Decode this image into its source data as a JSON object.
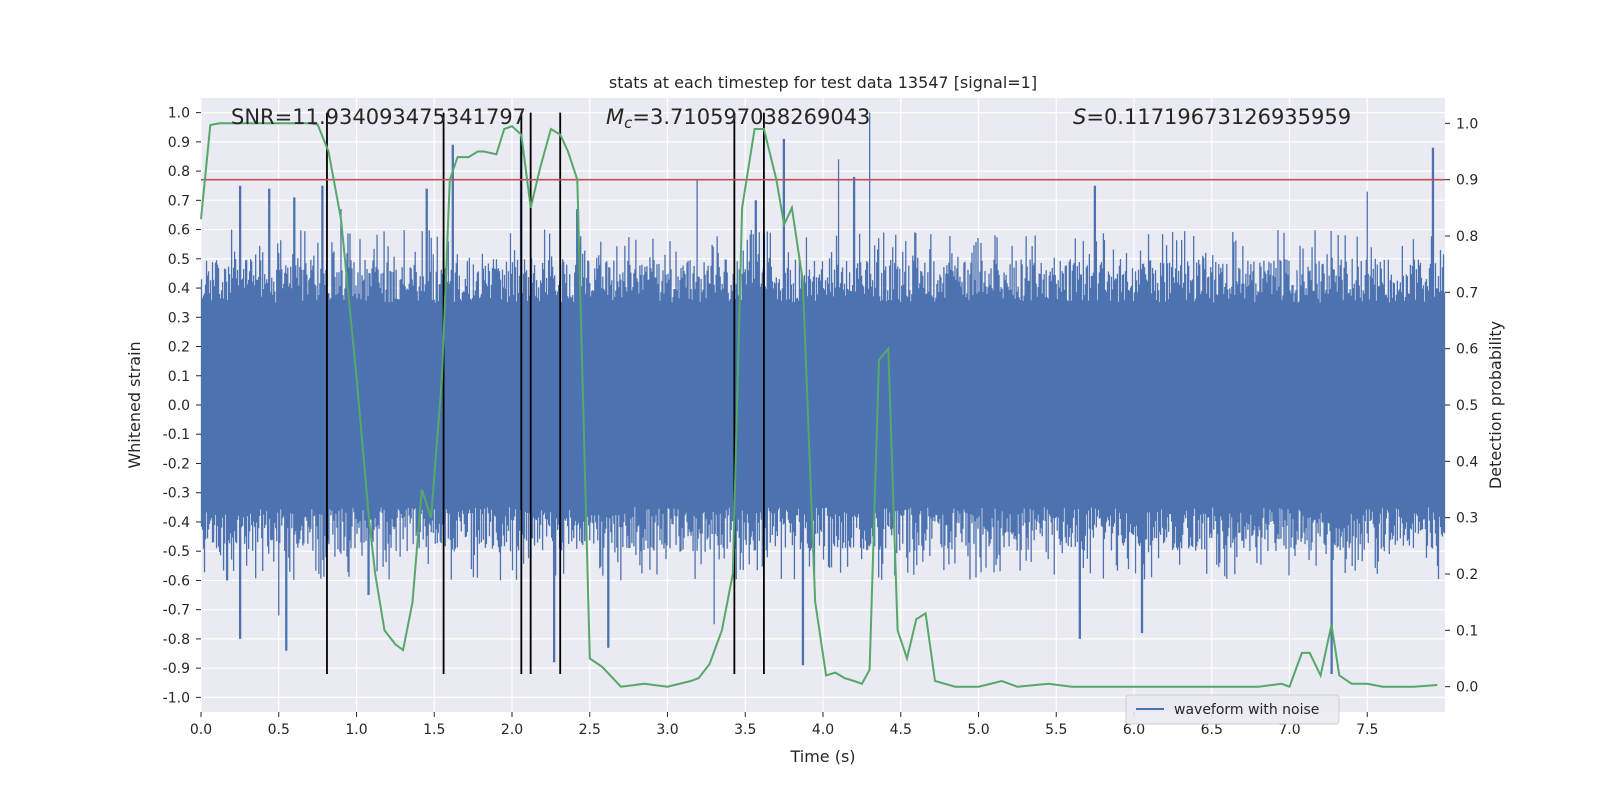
{
  "chart_data": {
    "type": "line",
    "title": "stats at each timestep for test data 13547 [signal=1]",
    "xlabel": "Time (s)",
    "ylabel": "Whitened strain",
    "y2label": "Detection probability",
    "xlim": [
      0,
      8.0
    ],
    "ylim": [
      -1.05,
      1.05
    ],
    "y2lim": [
      -0.045,
      1.045
    ],
    "x_ticks": [
      "0.0",
      "0.5",
      "1.0",
      "1.5",
      "2.0",
      "2.5",
      "3.0",
      "3.5",
      "4.0",
      "4.5",
      "5.0",
      "5.5",
      "6.0",
      "6.5",
      "7.0",
      "7.5"
    ],
    "y_ticks": [
      "-1.0",
      "-0.9",
      "-0.8",
      "-0.7",
      "-0.6",
      "-0.5",
      "-0.4",
      "-0.3",
      "-0.2",
      "-0.1",
      "0.0",
      "0.1",
      "0.2",
      "0.3",
      "0.4",
      "0.5",
      "0.6",
      "0.7",
      "0.8",
      "0.9",
      "1.0"
    ],
    "y2_ticks": [
      "0.0",
      "0.1",
      "0.2",
      "0.3",
      "0.4",
      "0.5",
      "0.6",
      "0.7",
      "0.8",
      "0.9",
      "1.0"
    ],
    "grid": true,
    "legend": {
      "placement": "lower-right",
      "entries": [
        "waveform with noise"
      ]
    },
    "annotations": {
      "snr": "SNR=11.934093475341797",
      "mc_symbol": "M",
      "mc_sub": "c",
      "mc_value": "=3.710597038269043",
      "s_symbol": "S",
      "s_value": "=0.11719673126935959"
    },
    "threshold": 0.9,
    "vertical_lines_x": [
      0.81,
      1.56,
      2.06,
      2.12,
      2.31,
      3.43,
      3.62
    ],
    "vertical_lines_y": [
      -0.92,
      1.0
    ],
    "series": [
      {
        "name": "waveform with noise",
        "axis": "left",
        "kind": "noise-waveform",
        "envelope": {
          "core": 0.35,
          "typical_peak": 0.6,
          "max_peak": 1.0,
          "min_trough": -0.92
        },
        "spikes": [
          {
            "x": 0.25,
            "y": 0.75
          },
          {
            "x": 0.44,
            "y": 0.74
          },
          {
            "x": 0.6,
            "y": 0.71
          },
          {
            "x": 0.78,
            "y": 0.75
          },
          {
            "x": 0.9,
            "y": 0.67
          },
          {
            "x": 1.45,
            "y": 0.74
          },
          {
            "x": 1.62,
            "y": 0.89
          },
          {
            "x": 2.06,
            "y": 0.92
          },
          {
            "x": 2.42,
            "y": 0.67
          },
          {
            "x": 3.19,
            "y": 0.77
          },
          {
            "x": 3.57,
            "y": 0.7
          },
          {
            "x": 3.75,
            "y": 0.91
          },
          {
            "x": 4.1,
            "y": 0.84
          },
          {
            "x": 4.2,
            "y": 0.78
          },
          {
            "x": 4.3,
            "y": 1.0
          },
          {
            "x": 5.75,
            "y": 0.75
          },
          {
            "x": 7.5,
            "y": 0.73
          },
          {
            "x": 7.92,
            "y": 0.88
          },
          {
            "x": 0.17,
            "y": -0.6
          },
          {
            "x": 0.25,
            "y": -0.8
          },
          {
            "x": 0.55,
            "y": -0.84
          },
          {
            "x": 0.5,
            "y": -0.72
          },
          {
            "x": 1.08,
            "y": -0.65
          },
          {
            "x": 2.27,
            "y": -0.88
          },
          {
            "x": 2.62,
            "y": -0.83
          },
          {
            "x": 3.3,
            "y": -0.75
          },
          {
            "x": 3.87,
            "y": -0.89
          },
          {
            "x": 5.65,
            "y": -0.8
          },
          {
            "x": 6.05,
            "y": -0.78
          },
          {
            "x": 7.27,
            "y": -0.92
          }
        ]
      },
      {
        "name": "detection probability",
        "axis": "right",
        "color": "#55a868",
        "x": [
          0,
          0.06,
          0.12,
          0.2,
          0.3,
          0.4,
          0.5,
          0.6,
          0.7,
          0.75,
          0.82,
          0.9,
          1.0,
          1.08,
          1.12,
          1.18,
          1.25,
          1.3,
          1.36,
          1.42,
          1.48,
          1.55,
          1.6,
          1.65,
          1.72,
          1.78,
          1.82,
          1.9,
          1.95,
          2.0,
          2.06,
          2.12,
          2.18,
          2.25,
          2.31,
          2.36,
          2.42,
          2.5,
          2.58,
          2.7,
          2.85,
          3.0,
          3.15,
          3.2,
          3.27,
          3.35,
          3.42,
          3.48,
          3.56,
          3.62,
          3.7,
          3.75,
          3.8,
          3.87,
          3.95,
          4.02,
          4.08,
          4.14,
          4.2,
          4.25,
          4.3,
          4.36,
          4.42,
          4.48,
          4.54,
          4.6,
          4.66,
          4.72,
          4.85,
          5.0,
          5.15,
          5.25,
          5.45,
          5.6,
          5.8,
          6.0,
          6.2,
          6.4,
          6.6,
          6.8,
          6.95,
          7.0,
          7.08,
          7.13,
          7.2,
          7.27,
          7.32,
          7.4,
          7.5,
          7.6,
          7.8,
          7.95
        ],
        "y": [
          0.83,
          0.997,
          1.0,
          1.0,
          1.0,
          1.0,
          1.0,
          1.0,
          1.0,
          0.998,
          0.95,
          0.83,
          0.55,
          0.3,
          0.2,
          0.1,
          0.075,
          0.065,
          0.15,
          0.35,
          0.3,
          0.55,
          0.9,
          0.94,
          0.94,
          0.95,
          0.95,
          0.945,
          0.99,
          0.995,
          0.98,
          0.85,
          0.92,
          0.99,
          0.98,
          0.95,
          0.9,
          0.05,
          0.035,
          0.0,
          0.005,
          0.0,
          0.01,
          0.015,
          0.04,
          0.1,
          0.2,
          0.85,
          0.99,
          0.99,
          0.9,
          0.82,
          0.85,
          0.72,
          0.15,
          0.02,
          0.025,
          0.015,
          0.01,
          0.005,
          0.03,
          0.58,
          0.6,
          0.1,
          0.05,
          0.12,
          0.13,
          0.01,
          0.0,
          0.0,
          0.01,
          0.0,
          0.005,
          0.0,
          0.0,
          0.0,
          0.0,
          0.0,
          0.0,
          0.0,
          0.005,
          0.0,
          0.06,
          0.06,
          0.02,
          0.11,
          0.02,
          0.005,
          0.005,
          0.0,
          0.0,
          0.003
        ]
      }
    ]
  }
}
